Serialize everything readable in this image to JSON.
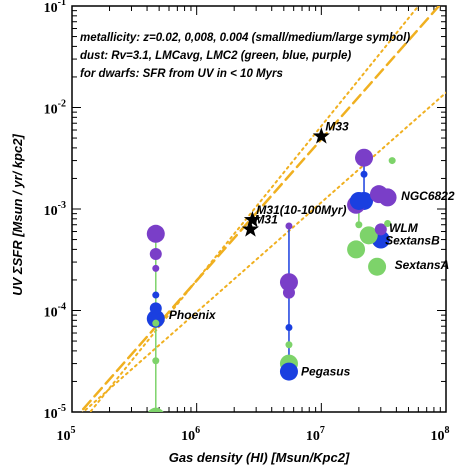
{
  "chart_data": {
    "type": "scatter",
    "xscale": "log",
    "yscale": "log",
    "xlim": [
      100000,
      100000000
    ],
    "ylim": [
      1e-05,
      0.1
    ],
    "xlabel": "Gas density (HI) [Msun/Kpc2]",
    "ylabel": "UV ΣSFR [Msun / yr/ kpc2]",
    "x_ticks": [
      {
        "value": 100000,
        "base": "10",
        "exp": "5"
      },
      {
        "value": 1000000,
        "base": "10",
        "exp": "6"
      },
      {
        "value": 10000000,
        "base": "10",
        "exp": "7"
      },
      {
        "value": 100000000,
        "base": "10",
        "exp": "8"
      }
    ],
    "y_ticks": [
      {
        "value": 1e-05,
        "base": "10",
        "exp": "-5"
      },
      {
        "value": 0.0001,
        "base": "10",
        "exp": "-4"
      },
      {
        "value": 0.001,
        "base": "10",
        "exp": "-3"
      },
      {
        "value": 0.01,
        "base": "10",
        "exp": "-2"
      },
      {
        "value": 0.1,
        "base": "10",
        "exp": "-1"
      }
    ],
    "annotations": [
      "metallicity: z=0.02, 0,008, 0.004 (small/medium/large symbol)",
      "dust: Rv=3.1, LMCavg, LMC2 (green, blue, purple)",
      "for dwarfs: SFR from UV in  < 10 Myrs"
    ],
    "colors": {
      "green": "#7dd36a",
      "blue": "#1a3fe0",
      "purple": "#7a3ec8",
      "reference": "#f0b020"
    },
    "reference_lines": [
      {
        "style": "dashed",
        "points": [
          [
            100000,
            8e-06
          ],
          [
            100000000,
            0.12
          ]
        ]
      },
      {
        "style": "dotted",
        "points": [
          [
            100000,
            6e-06
          ],
          [
            60000000,
            0.1
          ]
        ]
      },
      {
        "style": "dotted",
        "points": [
          [
            100000,
            8e-06
          ],
          [
            100000000,
            0.014
          ]
        ]
      }
    ],
    "stars": [
      {
        "name": "M33",
        "x": 10000000,
        "y": 0.0052
      },
      {
        "name": "M31(10-100Myr)",
        "x": 2800000,
        "y": 0.00078
      },
      {
        "name": "M31",
        "x": 2700000,
        "y": 0.00063
      }
    ],
    "galaxy_labels": [
      {
        "name": "Phoenix",
        "x": 480000,
        "y": 9e-05
      },
      {
        "name": "Pegasus",
        "x": 5500000,
        "y": 2.5e-05
      },
      {
        "name": "NGC6822",
        "x": 35000000,
        "y": 0.00135
      },
      {
        "name": "WLM",
        "x": 28000000,
        "y": 0.00065
      },
      {
        "name": "SextansB",
        "x": 26000000,
        "y": 0.00049
      },
      {
        "name": "SextansA",
        "x": 31000000,
        "y": 0.00028
      }
    ],
    "galaxies": [
      {
        "name": "Phoenix",
        "points": [
          {
            "x": 470000,
            "y": 0.00057,
            "color": "purple",
            "size": "large"
          },
          {
            "x": 470000,
            "y": 0.00036,
            "color": "purple",
            "size": "medium"
          },
          {
            "x": 470000,
            "y": 0.00026,
            "color": "purple",
            "size": "small"
          },
          {
            "x": 470000,
            "y": 0.000105,
            "color": "blue",
            "size": "medium"
          },
          {
            "x": 470000,
            "y": 0.000142,
            "color": "blue",
            "size": "small"
          },
          {
            "x": 470000,
            "y": 8.3e-05,
            "color": "blue",
            "size": "large"
          },
          {
            "x": 470000,
            "y": 7.5e-05,
            "color": "green",
            "size": "small"
          },
          {
            "x": 470000,
            "y": 3.2e-05,
            "color": "green",
            "size": "small"
          },
          {
            "x": 470000,
            "y": 9e-06,
            "color": "green",
            "size": "large"
          }
        ]
      },
      {
        "name": "Pegasus",
        "points": [
          {
            "x": 5500000,
            "y": 0.00068,
            "color": "purple",
            "size": "small"
          },
          {
            "x": 5500000,
            "y": 0.00019,
            "color": "purple",
            "size": "large"
          },
          {
            "x": 5500000,
            "y": 0.00015,
            "color": "purple",
            "size": "medium"
          },
          {
            "x": 5500000,
            "y": 6.8e-05,
            "color": "blue",
            "size": "small"
          },
          {
            "x": 5500000,
            "y": 4.6e-05,
            "color": "green",
            "size": "small"
          },
          {
            "x": 5500000,
            "y": 3e-05,
            "color": "green",
            "size": "large"
          },
          {
            "x": 5500000,
            "y": 2.5e-05,
            "color": "blue",
            "size": "large"
          }
        ]
      },
      {
        "name": "NGC6822",
        "points": [
          {
            "x": 22000000,
            "y": 0.0032,
            "color": "purple",
            "size": "large"
          },
          {
            "x": 22000000,
            "y": 0.0022,
            "color": "blue",
            "size": "small"
          },
          {
            "x": 22000000,
            "y": 0.0012,
            "color": "blue",
            "size": "large"
          },
          {
            "x": 29000000,
            "y": 0.0014,
            "color": "purple",
            "size": "large"
          },
          {
            "x": 34000000,
            "y": 0.0013,
            "color": "purple",
            "size": "large"
          },
          {
            "x": 37000000,
            "y": 0.003,
            "color": "green",
            "size": "small"
          }
        ]
      },
      {
        "name": "WLM",
        "points": [
          {
            "x": 19000000,
            "y": 0.0011,
            "color": "purple",
            "size": "large"
          },
          {
            "x": 20000000,
            "y": 0.0012,
            "color": "blue",
            "size": "large"
          },
          {
            "x": 20000000,
            "y": 0.0007,
            "color": "green",
            "size": "small"
          }
        ]
      },
      {
        "name": "SextansB",
        "points": [
          {
            "x": 30000000,
            "y": 0.00063,
            "color": "purple",
            "size": "medium"
          },
          {
            "x": 30000000,
            "y": 0.0005,
            "color": "blue",
            "size": "large"
          },
          {
            "x": 24000000,
            "y": 0.00055,
            "color": "green",
            "size": "large"
          }
        ]
      },
      {
        "name": "SextansA",
        "points": [
          {
            "x": 19000000,
            "y": 0.0004,
            "color": "green",
            "size": "large"
          },
          {
            "x": 28000000,
            "y": 0.00027,
            "color": "green",
            "size": "large"
          },
          {
            "x": 34000000,
            "y": 0.00072,
            "color": "green",
            "size": "small"
          }
        ]
      }
    ]
  }
}
